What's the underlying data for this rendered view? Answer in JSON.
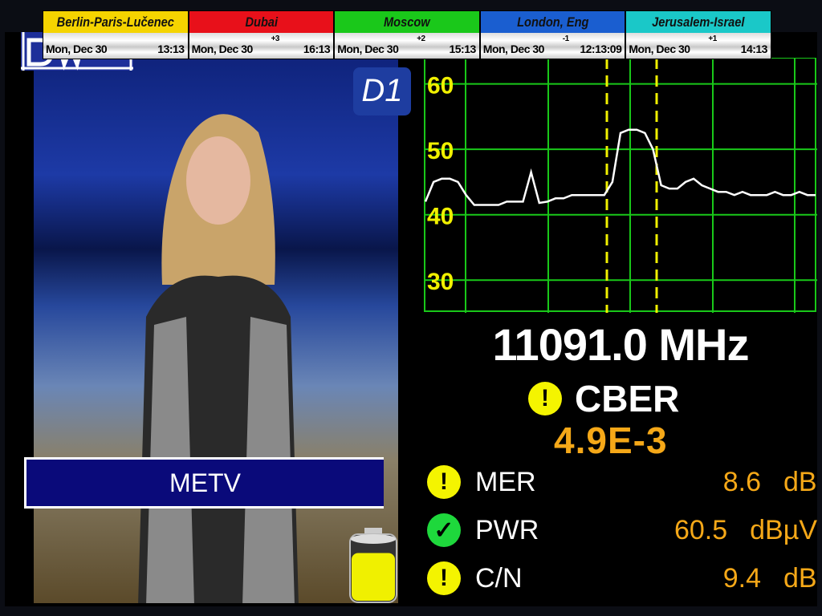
{
  "clocks": [
    {
      "city": "Berlin-Paris-Lučenec",
      "date": "Mon, Dec 30",
      "offset": "",
      "time": "13:13",
      "color": "#f5d400"
    },
    {
      "city": "Dubai",
      "date": "Mon, Dec 30",
      "offset": "+3",
      "time": "16:13",
      "color": "#e8101a"
    },
    {
      "city": "Moscow",
      "date": "Mon, Dec 30",
      "offset": "+2",
      "time": "15:13",
      "color": "#1ac81a"
    },
    {
      "city": "London, Eng",
      "date": "Mon, Dec 30",
      "offset": "-1",
      "time": "12:13:09",
      "color": "#1a5ed0"
    },
    {
      "city": "Jerusalem-Israel",
      "date": "Mon, Dec 30",
      "offset": "+1",
      "time": "14:13",
      "color": "#1ac8c8"
    }
  ],
  "video": {
    "channel_name": "METV",
    "logo_left": "DW",
    "logo_right": "D1"
  },
  "battery": {
    "level_percent": 70,
    "color": "#f0f000"
  },
  "spectrum": {
    "type": "line",
    "yticks": [
      60,
      50,
      40,
      30
    ],
    "ylim": [
      25,
      64
    ],
    "grid": true,
    "line_color": "#ffffff",
    "grid_color": "#19c819",
    "marker_color": "#f0f000",
    "levels": [
      42,
      45,
      45.5,
      45.5,
      45,
      43,
      41.5,
      41.5,
      41.5,
      41.5,
      42,
      42,
      42,
      46.5,
      41.8,
      42,
      42.5,
      42.5,
      43,
      43,
      43,
      43,
      43,
      45,
      52.5,
      53,
      53,
      52.5,
      50,
      44.5,
      44,
      44,
      45,
      45.5,
      44.5,
      44,
      43.5,
      43.5,
      43,
      43.5,
      43,
      43,
      43,
      43.5,
      43,
      43,
      43.5,
      43,
      43
    ]
  },
  "frequency": "11091.0 MHz",
  "cber": {
    "label": "CBER",
    "value": "4.9E-3",
    "status": "warning"
  },
  "measurements": [
    {
      "name": "MER",
      "value": "8.6",
      "unit": "dB",
      "status": "warning"
    },
    {
      "name": "PWR",
      "value": "60.5",
      "unit": "dBµV",
      "status": "ok"
    },
    {
      "name": "C/N",
      "value": "9.4",
      "unit": "dB",
      "status": "warning"
    }
  ]
}
